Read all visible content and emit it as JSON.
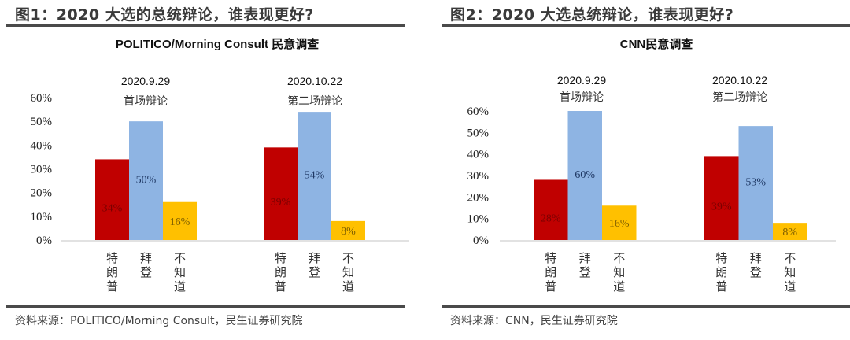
{
  "figures": [
    {
      "fig_title": "图1：2020 大选的总统辩论，谁表现更好?",
      "source": "资料来源：POLITICO/Morning Consult，民生证券研究院"
    },
    {
      "fig_title": "图2：2020 大选总统辩论，谁表现更好?",
      "source": "资料来源：CNN，民生证券研究院"
    }
  ],
  "colors": {
    "trump": "#C00000",
    "biden": "#8EB4E3",
    "unknown": "#FFC000",
    "trump_label": "#7a0000",
    "biden_label": "#1f3864",
    "unknown_label": "#7f5f00",
    "axis": "#d9d9d9",
    "rule": "#4a4a4a"
  },
  "chart_data": [
    {
      "type": "bar",
      "title": "POLITICO/Morning Consult 民意调查",
      "xlabel": "",
      "ylabel": "",
      "ylim": [
        0,
        60
      ],
      "yticks": [
        "0%",
        "10%",
        "20%",
        "30%",
        "40%",
        "50%",
        "60%"
      ],
      "grid": false,
      "legend": "none",
      "categories": [
        "特朗普",
        "拜登",
        "不知道"
      ],
      "groups": [
        {
          "date": "2020.9.29",
          "label": "首场辩论",
          "values": [
            34,
            50,
            16
          ],
          "value_labels": [
            "34%",
            "50%",
            "16%"
          ]
        },
        {
          "date": "2020.10.22",
          "label": "第二场辩论",
          "values": [
            39,
            54,
            8
          ],
          "value_labels": [
            "39%",
            "54%",
            "8%"
          ]
        }
      ]
    },
    {
      "type": "bar",
      "title": "CNN民意调查",
      "xlabel": "",
      "ylabel": "",
      "ylim": [
        0,
        60
      ],
      "yticks": [
        "0%",
        "10%",
        "20%",
        "30%",
        "40%",
        "50%",
        "60%"
      ],
      "grid": false,
      "legend": "none",
      "categories": [
        "特朗普",
        "拜登",
        "不知道"
      ],
      "groups": [
        {
          "date": "2020.9.29",
          "label": "首场辩论",
          "values": [
            28,
            60,
            16
          ],
          "value_labels": [
            "28%",
            "60%",
            "16%"
          ]
        },
        {
          "date": "2020.10.22",
          "label": "第二场辩论",
          "values": [
            39,
            53,
            8
          ],
          "value_labels": [
            "39%",
            "53%",
            "8%"
          ]
        }
      ]
    }
  ]
}
